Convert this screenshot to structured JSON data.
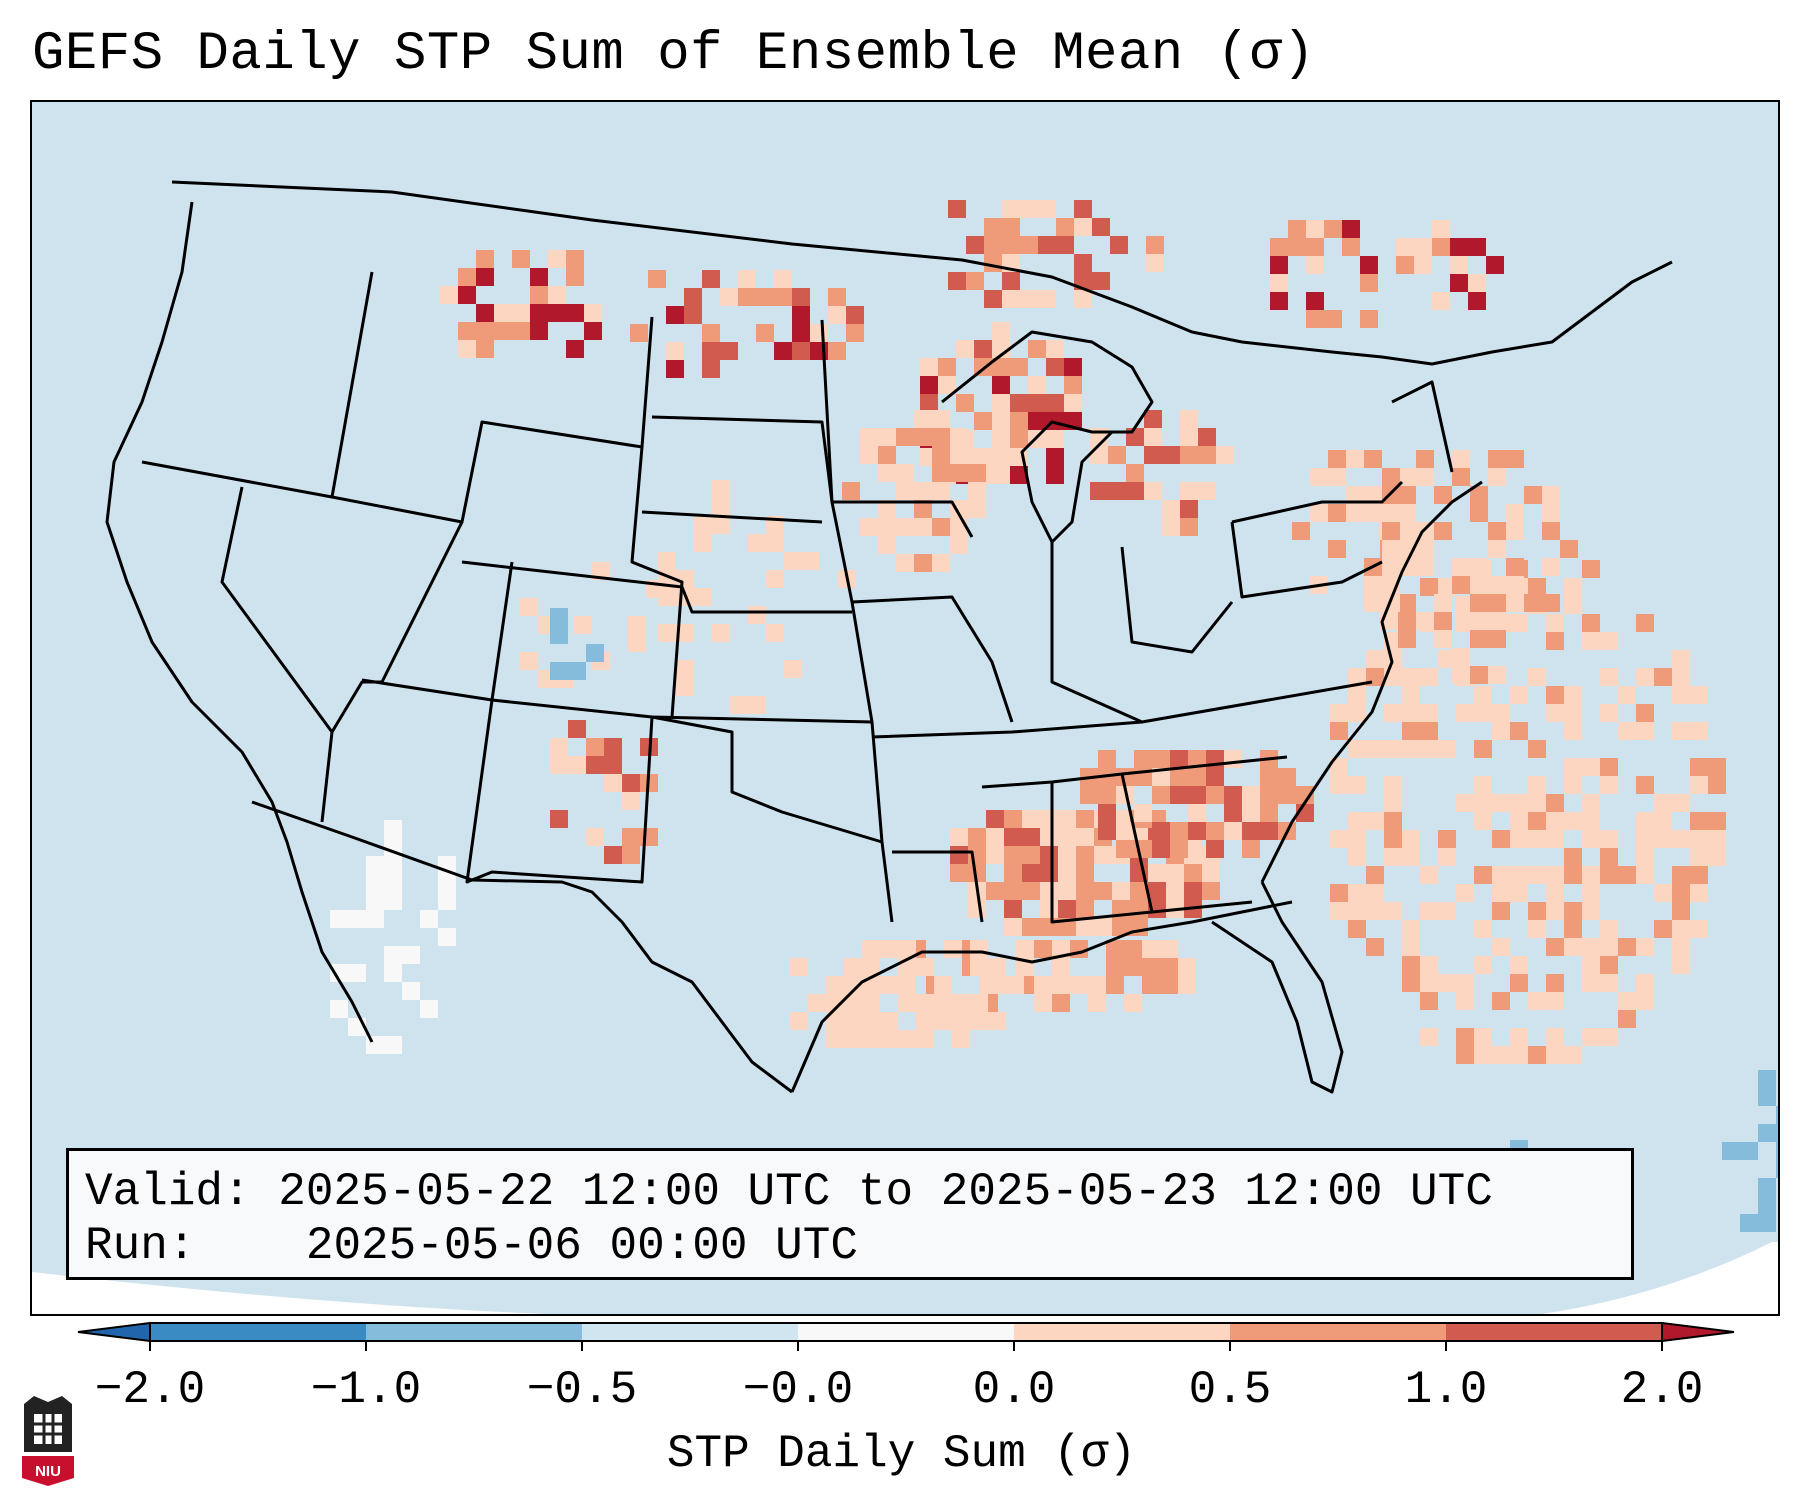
{
  "title": "GEFS Daily STP Sum of Ensemble Mean (σ)",
  "info": {
    "valid_label": "Valid:",
    "valid_value": "2025-05-22 12:00 UTC to 2025-05-23 12:00 UTC",
    "run_label": "Run:",
    "run_value": "2025-05-06 00:00 UTC"
  },
  "colorbar": {
    "label": "STP Daily Sum (σ)",
    "ticks": [
      "−2.0",
      "−1.0",
      "−0.5",
      "−0.0",
      "0.0",
      "0.5",
      "1.0",
      "2.0"
    ],
    "bin_colors": [
      "#3a8ac3",
      "#85bcdc",
      "#d1e5f0",
      "#f8f8f8",
      "#fcd6c1",
      "#ef9b7a",
      "#d15b4f"
    ],
    "under_color": "#2166ac",
    "over_color": "#b2182b"
  },
  "map": {
    "ocean_color": "#cfe3ef",
    "border_color": "#000000"
  },
  "logo": {
    "text": "NIU"
  }
}
